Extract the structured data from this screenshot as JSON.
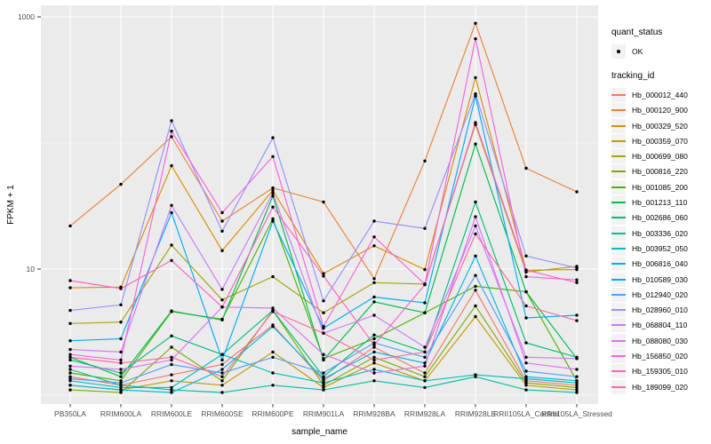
{
  "chart_data": {
    "type": "line",
    "title": "",
    "xlabel": "sample_name",
    "ylabel": "FPKM + 1",
    "yscale": "log10",
    "ylim": [
      1,
      1000
    ],
    "ytick_values": [
      10,
      1000
    ],
    "ytick_labels": [
      "10",
      "1000"
    ],
    "yminor_values": [
      1,
      100
    ],
    "grid": "on",
    "legend_position": "right",
    "panel_bg": "#ebebeb",
    "grid_color": "#ffffff",
    "point_color": "#000000",
    "tick_label_color": "#4d4d4d",
    "categories": [
      "PB350LA",
      "RRIM600LA",
      "RRIM600LE",
      "RRIM600SE",
      "RRIM600PE",
      "RRIM901LA",
      "RRIM928BA",
      "RRIM928LA",
      "RRIM928LE",
      "RRII105LA_Control",
      "RRII105LA_Stressed"
    ],
    "series": [
      {
        "name": "Hb_000012_440",
        "color": "#F8766D",
        "values": [
          1.4,
          1.2,
          1.45,
          1.75,
          3.6,
          1.3,
          2.4,
          1.5,
          6.8,
          1.3,
          1.2
        ]
      },
      {
        "name": "Hb_000120_900",
        "color": "#EC8239",
        "values": [
          22,
          47,
          112,
          24,
          44,
          34,
          8.4,
          72,
          890,
          63,
          41
        ]
      },
      {
        "name": "Hb_000329_520",
        "color": "#DB8E00",
        "values": [
          7.1,
          7.2,
          66,
          14,
          42,
          9.2,
          15.3,
          9.9,
          330,
          9.8,
          9.9
        ]
      },
      {
        "name": "Hb_000359_070",
        "color": "#C49A00",
        "values": [
          1.2,
          1.1,
          1.3,
          1.2,
          2.2,
          1.15,
          1.8,
          1.3,
          4.2,
          1.2,
          1.1
        ]
      },
      {
        "name": "Hb_000699_080",
        "color": "#A6A400",
        "values": [
          3.7,
          3.8,
          15.5,
          5.7,
          8.7,
          4.5,
          7.8,
          7.6,
          140,
          9.5,
          10.5
        ]
      },
      {
        "name": "Hb_000816_220",
        "color": "#7FAC00",
        "values": [
          1.1,
          1.05,
          2.4,
          1.3,
          4.7,
          1.2,
          2.0,
          1.4,
          5.1,
          1.25,
          1.15
        ]
      },
      {
        "name": "Hb_001085_200",
        "color": "#4CB400",
        "values": [
          1.5,
          1.3,
          4.6,
          4.0,
          25,
          1.95,
          2.8,
          4.5,
          7.3,
          6.6,
          1.3
        ]
      },
      {
        "name": "Hb_001213_110",
        "color": "#00BC51",
        "values": [
          2.0,
          1.4,
          4.65,
          3.95,
          38,
          1.9,
          5.5,
          4.5,
          98,
          6.6,
          1.95
        ]
      },
      {
        "name": "Hb_002686_060",
        "color": "#00C078",
        "values": [
          1.9,
          1.5,
          2.95,
          2.1,
          4.7,
          1.4,
          3.0,
          2.2,
          34,
          2.6,
          2.0
        ]
      },
      {
        "name": "Hb_003336_020",
        "color": "#00C19F",
        "values": [
          1.6,
          1.2,
          1.1,
          1.05,
          1.2,
          1.1,
          1.3,
          1.15,
          1.4,
          1.1,
          1.05
        ]
      },
      {
        "name": "Hb_003952_050",
        "color": "#00BFC4",
        "values": [
          1.3,
          1.15,
          1.15,
          2.1,
          1.5,
          1.25,
          1.6,
          1.3,
          1.45,
          1.35,
          1.25
        ]
      },
      {
        "name": "Hb_006816_040",
        "color": "#00B9E3",
        "values": [
          1.2,
          1.1,
          1.05,
          1.6,
          3.5,
          1.35,
          2.2,
          1.8,
          12.7,
          1.4,
          1.3
        ]
      },
      {
        "name": "Hb_010589_030",
        "color": "#00ACFC",
        "values": [
          2.7,
          2.8,
          28,
          1.9,
          24,
          3.4,
          6.0,
          5.4,
          235,
          4.1,
          4.3
        ]
      },
      {
        "name": "Hb_012940_020",
        "color": "#529EFF",
        "values": [
          1.35,
          1.25,
          1.75,
          1.5,
          2.0,
          1.5,
          2.6,
          2.0,
          8.9,
          1.55,
          1.4
        ]
      },
      {
        "name": "Hb_028960_010",
        "color": "#9590FF",
        "values": [
          4.7,
          5.2,
          150,
          20,
          110,
          5.6,
          24,
          21,
          245,
          12.7,
          10.2
        ]
      },
      {
        "name": "Hb_068804_110",
        "color": "#C77CFF",
        "values": [
          2.3,
          2.2,
          32,
          6.9,
          40,
          3.1,
          4.3,
          2.4,
          22,
          2.0,
          1.95
        ]
      },
      {
        "name": "Hb_088080_030",
        "color": "#E36EF6",
        "values": [
          1.7,
          1.6,
          1.9,
          5.0,
          4.9,
          2.1,
          1.5,
          1.7,
          26,
          1.8,
          1.6
        ]
      },
      {
        "name": "Hb_156850_020",
        "color": "#F763E0",
        "values": [
          2.1,
          1.9,
          124,
          28,
          78,
          3.5,
          18,
          7.6,
          670,
          8.7,
          8.2
        ]
      },
      {
        "name": "Hb_159305_010",
        "color": "#FF61C7",
        "values": [
          8.1,
          7.0,
          11.7,
          5.0,
          31,
          8.8,
          2.5,
          7.5,
          145,
          9.8,
          7.8
        ]
      },
      {
        "name": "Hb_189099_020",
        "color": "#FF68A1",
        "values": [
          2.0,
          1.8,
          2.0,
          1.4,
          4.6,
          3.1,
          1.9,
          2.2,
          19,
          5.1,
          3.9
        ]
      }
    ]
  },
  "legend": {
    "quant_status_title": "quant_status",
    "ok_label": "OK",
    "tracking_id_title": "tracking_id"
  }
}
